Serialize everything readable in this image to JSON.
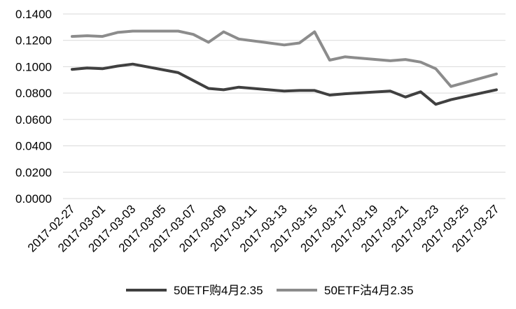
{
  "chart_data": {
    "type": "line",
    "title": "",
    "xlabel": "",
    "ylabel": "",
    "categories": [
      "2017-02-27",
      "2017-02-28",
      "2017-03-01",
      "2017-03-02",
      "2017-03-03",
      "2017-03-06",
      "2017-03-07",
      "2017-03-08",
      "2017-03-09",
      "2017-03-10",
      "2017-03-13",
      "2017-03-14",
      "2017-03-15",
      "2017-03-16",
      "2017-03-17",
      "2017-03-20",
      "2017-03-21",
      "2017-03-22",
      "2017-03-23",
      "2017-03-24",
      "2017-03-27"
    ],
    "x_tick_labels": [
      "2017-02-27",
      "2017-03-01",
      "2017-03-03",
      "2017-03-05",
      "2017-03-07",
      "2017-03-09",
      "2017-03-11",
      "2017-03-13",
      "2017-03-15",
      "2017-03-17",
      "2017-03-19",
      "2017-03-21",
      "2017-03-23",
      "2017-03-25",
      "2017-03-27"
    ],
    "y_tick_labels": [
      "0.0000",
      "0.0200",
      "0.0400",
      "0.0600",
      "0.0800",
      "0.1000",
      "0.1200",
      "0.1400"
    ],
    "ylim": [
      0,
      0.14
    ],
    "grid": true,
    "legend_position": "bottom",
    "series": [
      {
        "name": "50ETF购4月2.35",
        "color": "#404040",
        "values": [
          0.098,
          0.099,
          0.0985,
          0.1005,
          0.102,
          0.0955,
          0.0895,
          0.0835,
          0.0825,
          0.0845,
          0.0815,
          0.082,
          0.082,
          0.0785,
          0.0795,
          0.0815,
          0.077,
          0.081,
          0.0715,
          0.075,
          0.0825
        ]
      },
      {
        "name": "50ETF沽4月2.35",
        "color": "#8c8c8c",
        "values": [
          0.123,
          0.1235,
          0.123,
          0.126,
          0.127,
          0.127,
          0.1245,
          0.1185,
          0.1265,
          0.121,
          0.1165,
          0.118,
          0.1265,
          0.105,
          0.1075,
          0.1045,
          0.1055,
          0.1035,
          0.0985,
          0.085,
          0.0945
        ]
      }
    ]
  }
}
